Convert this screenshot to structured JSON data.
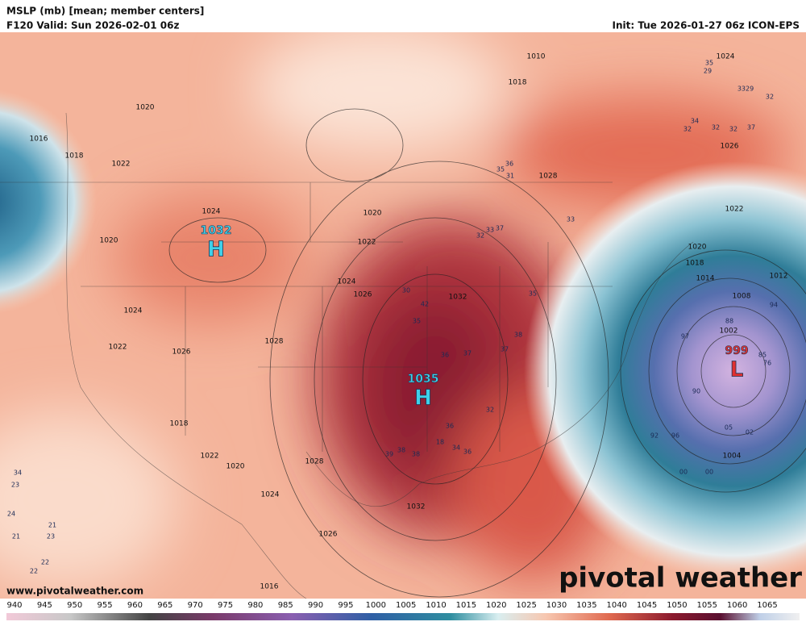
{
  "header": {
    "title": "MSLP (mb) [mean; member centers]",
    "valid": "F120 Valid: Sun 2026-02-01 06z",
    "init": "Init: Tue 2026-01-27 06z ICON-EPS"
  },
  "centers": [
    {
      "letter": "H",
      "value": "1032"
    },
    {
      "letter": "H",
      "value": "1035"
    },
    {
      "letter": "L",
      "value": "999"
    }
  ],
  "isobars": [
    "1024",
    "1018",
    "1020",
    "1016",
    "1018",
    "1022",
    "1026",
    "1028",
    "1024",
    "1020",
    "1020",
    "1022",
    "1026",
    "1024",
    "1032",
    "1024",
    "1022",
    "1026",
    "1028",
    "1018",
    "1022",
    "1020",
    "1028",
    "1024",
    "1032",
    "1026",
    "1016",
    "1022",
    "1020",
    "1018",
    "1014",
    "1012",
    "1008",
    "1004",
    "1002",
    "1010"
  ],
  "members": [
    "35",
    "29",
    "3329",
    "32",
    "34",
    "32",
    "32",
    "37",
    "32",
    "36",
    "35",
    "31",
    "33",
    "32",
    "33",
    "37",
    "35",
    "42",
    "35",
    "30",
    "36",
    "37",
    "38",
    "37",
    "32",
    "36",
    "39",
    "38",
    "38",
    "18",
    "34",
    "36",
    "34",
    "23",
    "24",
    "21",
    "23",
    "21",
    "22",
    "22",
    "97",
    "90",
    "88",
    "94",
    "85",
    "76",
    "05",
    "02",
    "92",
    "96",
    "00",
    "00"
  ],
  "url": "www.pivotalweather.com",
  "watermark": "pivotal weather",
  "colorbar": {
    "ticks": [
      940,
      945,
      950,
      955,
      960,
      965,
      970,
      975,
      980,
      985,
      990,
      995,
      1000,
      1005,
      1010,
      1015,
      1020,
      1025,
      1030,
      1035,
      1040,
      1045,
      1050,
      1055,
      1060,
      1065
    ]
  }
}
